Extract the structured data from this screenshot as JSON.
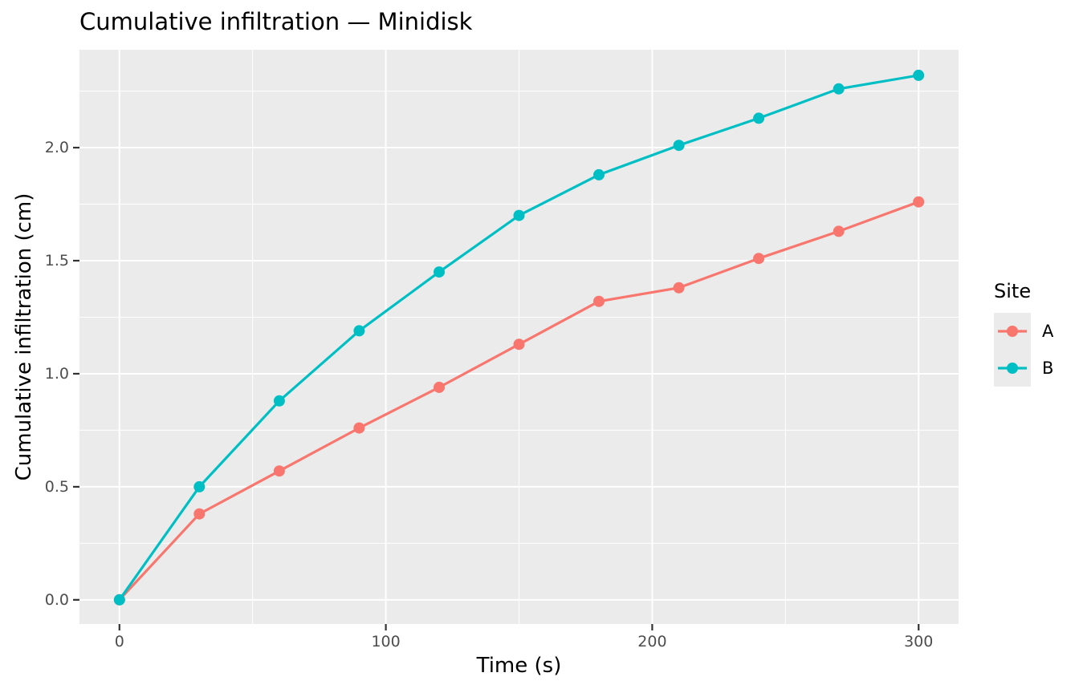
{
  "chart_data": {
    "type": "line",
    "title": "Cumulative infiltration — Minidisk",
    "xlabel": "Time (s)",
    "ylabel": "Cumulative infiltration (cm)",
    "x": [
      0,
      30,
      60,
      90,
      120,
      150,
      180,
      210,
      240,
      270,
      300
    ],
    "series": [
      {
        "name": "A",
        "color": "#F8766D",
        "values": [
          0.0,
          0.38,
          0.57,
          0.76,
          0.94,
          1.13,
          1.32,
          1.38,
          1.51,
          1.63,
          1.76
        ]
      },
      {
        "name": "B",
        "color": "#00BFC4",
        "values": [
          0.0,
          0.5,
          0.88,
          1.19,
          1.45,
          1.7,
          1.88,
          2.01,
          2.13,
          2.26,
          2.32
        ]
      }
    ],
    "x_ticks": {
      "major": [
        0,
        100,
        200,
        300
      ],
      "minor": [
        50,
        150,
        250
      ],
      "labels": [
        "0",
        "100",
        "200",
        "300"
      ]
    },
    "y_ticks": {
      "major": [
        0.0,
        0.5,
        1.0,
        1.5,
        2.0
      ],
      "minor": [
        0.25,
        0.75,
        1.25,
        1.75,
        2.25
      ],
      "labels": [
        "0.0",
        "0.5",
        "1.0",
        "1.5",
        "2.0"
      ]
    },
    "xlim": [
      -15,
      315
    ],
    "ylim": [
      -0.107,
      2.433
    ],
    "legend": {
      "title": "Site",
      "position": "right"
    },
    "style": {
      "panel_bg": "#EBEBEB",
      "grid_color": "#FFFFFF",
      "tick_mark_color": "#333333",
      "tick_text_color": "#4D4D4D",
      "grid_on": true,
      "marker_radius": 7,
      "line_width": 3.2
    }
  }
}
